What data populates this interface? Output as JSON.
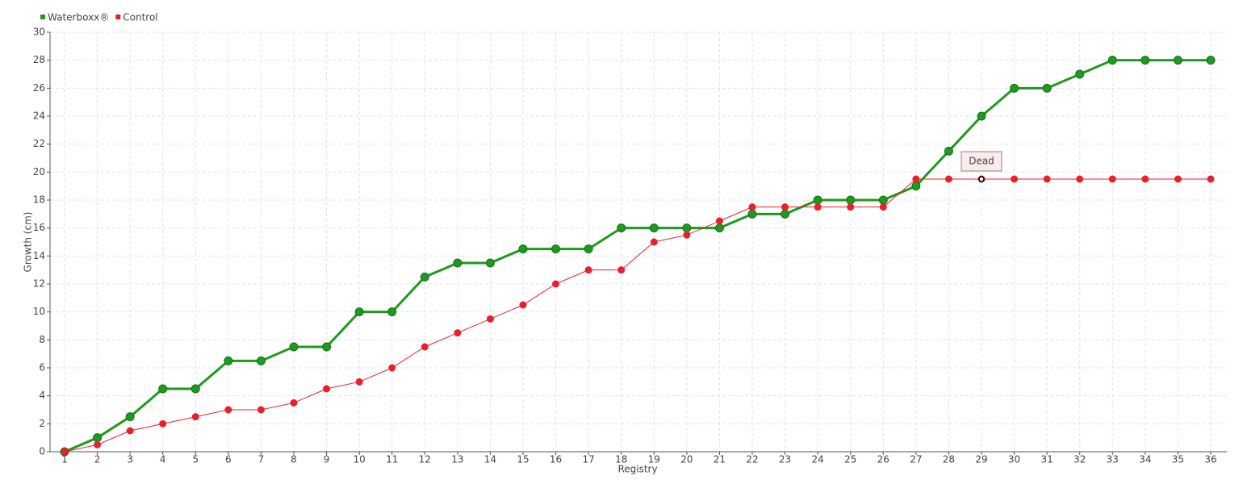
{
  "chart_data": {
    "type": "line",
    "x_label": "Registry",
    "y_label": "Growth (cm)",
    "categories": [
      "1",
      "2",
      "3",
      "4",
      "5",
      "6",
      "7",
      "8",
      "9",
      "10",
      "11",
      "12",
      "13",
      "14",
      "15",
      "16",
      "17",
      "18",
      "19",
      "20",
      "21",
      "22",
      "23",
      "24",
      "25",
      "26",
      "27",
      "28",
      "29",
      "30",
      "31",
      "32",
      "33",
      "34",
      "35",
      "36"
    ],
    "series": [
      {
        "name": "Waterboxx®",
        "color": "#1e9a1e",
        "values": [
          0,
          1,
          2.5,
          4.5,
          4.5,
          6.5,
          6.5,
          7.5,
          7.5,
          10,
          10,
          12.5,
          13.5,
          13.5,
          14.5,
          14.5,
          14.5,
          16,
          16,
          16,
          16,
          17,
          17,
          18,
          18,
          18,
          19,
          21.5,
          24,
          26,
          26,
          27,
          28,
          28,
          28,
          28
        ]
      },
      {
        "name": "Control",
        "color": "#e8202e",
        "values": [
          0,
          0.5,
          1.5,
          2,
          2.5,
          3,
          3,
          3.5,
          4.5,
          5,
          6,
          7.5,
          8.5,
          9.5,
          10.5,
          12,
          13,
          13,
          15,
          15.5,
          16.5,
          17.5,
          17.5,
          17.5,
          17.5,
          17.5,
          19.5,
          19.5,
          19.5,
          19.5,
          19.5,
          19.5,
          19.5,
          19.5,
          19.5,
          19.5
        ]
      }
    ],
    "annotation": {
      "text": "Dead",
      "category": "29",
      "series": "Control"
    },
    "ylim": [
      0,
      30
    ],
    "yticks": [
      0,
      2,
      4,
      6,
      8,
      10,
      12,
      14,
      16,
      18,
      20,
      22,
      24,
      26,
      28,
      30
    ],
    "grid": true,
    "legend": "top-left"
  }
}
